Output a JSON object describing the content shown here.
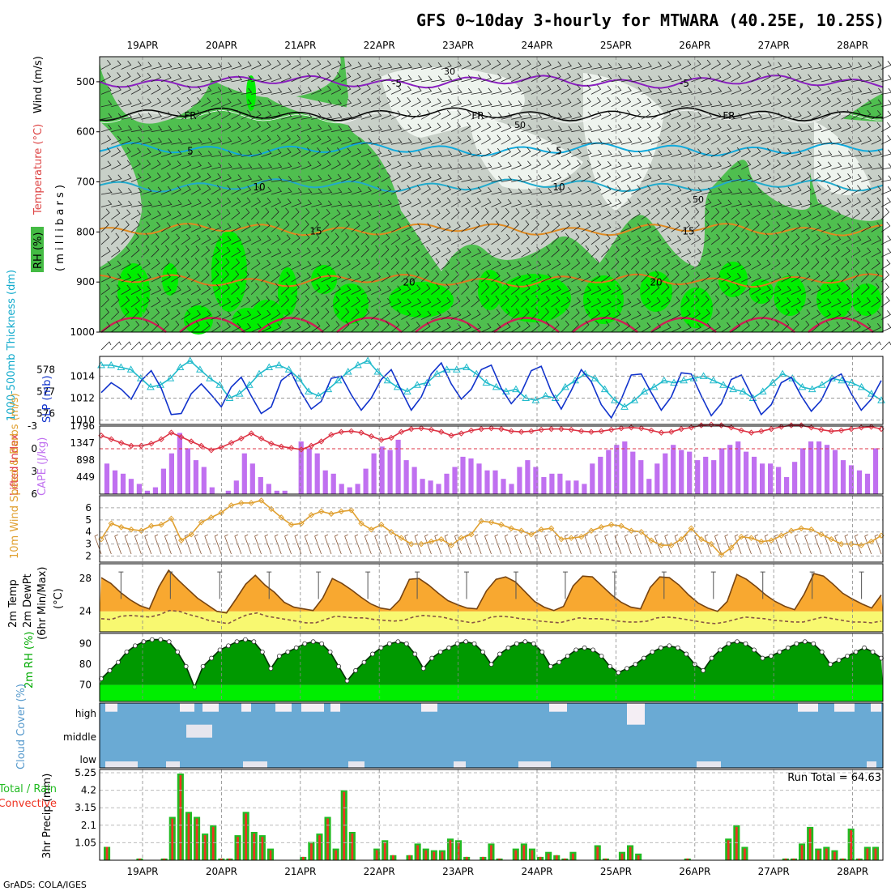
{
  "title": "GFS 0~10day 3-hourly for MTWARA (40.25E, 10.25S)",
  "footer": "GrADS: COLA/IGES",
  "colors": {
    "rh_green": "#4fbf4f",
    "rh_bright": "#00ee00",
    "rh_gray": "#c8d0c8",
    "rh_white": "#eef4ee",
    "purple": "#8a1fc0",
    "cyan": "#11aadd",
    "orange": "#e08a20",
    "slp_blue": "#1133cc",
    "thick_cyan": "#22bbcc",
    "li_red": "#dd3344",
    "cape_violet": "#c070f0",
    "wind_orange": "#e0a030",
    "temp_fill": "#f8a830",
    "dew_fill": "#f8f870",
    "rh2m_green": "#009900",
    "cloud_blue": "#6aaad4",
    "rain_green": "#22bb22",
    "conv_red": "#ee3322"
  },
  "chart_data": [
    {
      "type": "heatmap",
      "name": "upper-air",
      "ylabel_parts": [
        "RH (%)",
        "Temperature (°C)",
        "Wind (m/s)",
        "( m i l l i b a r s )"
      ],
      "x": [
        "19APR",
        "20APR",
        "21APR",
        "22APR",
        "23APR",
        "24APR",
        "25APR",
        "26APR",
        "27APR",
        "28APR"
      ],
      "yticks": [
        500,
        600,
        700,
        800,
        900,
        1000
      ],
      "ylim": [
        1000,
        450
      ],
      "isotherms": [
        {
          "label": "-5",
          "pressure": 500
        },
        {
          "label": "FR",
          "pressure": 565
        },
        {
          "label": "5",
          "pressure": 635
        },
        {
          "label": "10",
          "pressure": 707
        },
        {
          "label": "15",
          "pressure": 795
        },
        {
          "label": "20",
          "pressure": 897
        }
      ],
      "rh_labels": [
        "30",
        "50",
        "50"
      ]
    },
    {
      "type": "line",
      "name": "thickness-slp",
      "ylabel_left": "1000-500mb Thickness (dm)",
      "ylabel_right": "SLP (mb)",
      "yticks_left": [
        576,
        577,
        578
      ],
      "yticks_right": [
        1010,
        1012,
        1014
      ],
      "series": [
        {
          "name": "SLP (mb)",
          "values": [
            1012.5,
            1013.4,
            1012.8,
            1011.9,
            1013.6,
            1014.5,
            1012.9,
            1010.5,
            1010.6,
            1012.4,
            1013.3,
            1012.3,
            1011.2,
            1013.0,
            1013.9,
            1012.2,
            1010.6,
            1011.2,
            1013.6,
            1014.3,
            1012.5,
            1011.0,
            1011.7,
            1013.8,
            1014.0,
            1012.3,
            1010.9,
            1012.0,
            1013.7,
            1014.6,
            1012.7,
            1010.9,
            1012.1,
            1014.2,
            1015.2,
            1013.3,
            1011.9,
            1012.8,
            1014.6,
            1015.0,
            1012.9,
            1011.5,
            1012.5,
            1014.5,
            1014.9,
            1012.6,
            1011.0,
            1012.7,
            1014.6,
            1013.5,
            1011.4,
            1010.2,
            1011.9,
            1014.1,
            1014.2,
            1012.5,
            1010.9,
            1012.1,
            1014.3,
            1014.2,
            1012.2,
            1010.4,
            1011.5,
            1013.7,
            1014.1,
            1012.3,
            1010.5,
            1011.4,
            1013.4,
            1013.9,
            1012.2,
            1010.8,
            1011.8,
            1013.7,
            1014.2,
            1012.4,
            1010.9,
            1011.9,
            1013.6
          ]
        },
        {
          "name": "1000-500mb Thickness (dm)",
          "values": [
            578.2,
            578.2,
            578.1,
            578.0,
            577.6,
            577.2,
            577.3,
            577.6,
            578.1,
            578.4,
            578.0,
            577.6,
            577.3,
            576.7,
            576.9,
            577.3,
            577.8,
            578.1,
            578.2,
            578.0,
            577.6,
            577.0,
            576.8,
            577.1,
            577.5,
            577.9,
            578.2,
            578.4,
            577.9,
            577.5,
            577.2,
            577.0,
            577.3,
            577.4,
            577.8,
            578.0,
            578.0,
            578.1,
            577.8,
            577.4,
            577.2,
            577.0,
            577.1,
            576.7,
            576.6,
            576.8,
            576.7,
            577.2,
            577.5,
            577.8,
            577.6,
            577.1,
            576.6,
            576.3,
            576.6,
            577.0,
            577.2,
            577.5,
            577.4,
            577.5,
            577.6,
            577.7,
            577.5,
            577.3,
            577.1,
            577.0,
            576.7,
            577.0,
            577.4,
            577.8,
            577.6,
            577.2,
            577.1,
            577.3,
            577.6,
            577.5,
            577.4,
            577.2,
            576.9,
            576.6
          ]
        }
      ]
    },
    {
      "type": "bar",
      "name": "lifted-index-cape",
      "ylabel_left": "Lifted Index",
      "ylabel_right": "CAPE (J/kg)",
      "yticks_left": [
        -3,
        0,
        3,
        6
      ],
      "yticks_right": [
        449,
        898,
        1347,
        1796
      ],
      "series": [
        {
          "name": "Lifted Index",
          "values": [
            -2.0,
            -1.5,
            -1.0,
            -0.6,
            -0.6,
            -0.9,
            -1.5,
            -2.4,
            -1.8,
            -1.2,
            -0.6,
            0.0,
            -0.4,
            -1.0,
            -1.6,
            -2.3,
            -1.6,
            -0.9,
            -0.5,
            -0.3,
            -0.1,
            -0.6,
            -1.2,
            -2.1,
            -2.5,
            -2.6,
            -2.4,
            -1.9,
            -1.4,
            -1.7,
            -2.5,
            -2.9,
            -3.0,
            -2.8,
            -2.5,
            -2.0,
            -2.3,
            -2.7,
            -2.9,
            -3.0,
            -2.9,
            -2.6,
            -2.5,
            -2.6,
            -2.8,
            -2.9,
            -2.9,
            -2.8,
            -2.6,
            -2.5,
            -2.6,
            -2.8,
            -3.0,
            -3.1,
            -3.0,
            -2.7,
            -2.4,
            -2.5,
            -2.9,
            -3.1,
            -3.4,
            -3.5,
            -3.4,
            -3.1,
            -2.7,
            -2.4,
            -2.6,
            -2.9,
            -3.2,
            -3.4,
            -3.4,
            -3.1,
            -2.8,
            -2.6,
            -2.7,
            -2.9,
            -3.1,
            -3.2,
            -2.9
          ]
        },
        {
          "name": "CAPE (J/kg)",
          "values": [
            806,
            627,
            538,
            403,
            269,
            90,
            179,
            672,
            1075,
            1614,
            1210,
            896,
            717,
            179,
            0,
            90,
            358,
            1075,
            806,
            448,
            269,
            90,
            90,
            0,
            1389,
            1210,
            1075,
            627,
            538,
            269,
            179,
            269,
            672,
            1075,
            1254,
            1165,
            1434,
            896,
            717,
            403,
            358,
            269,
            538,
            717,
            985,
            940,
            806,
            627,
            627,
            403,
            269,
            717,
            896,
            717,
            448,
            538,
            538,
            358,
            358,
            269,
            806,
            985,
            1165,
            1300,
            1389,
            1120,
            896,
            403,
            806,
            1075,
            1300,
            1165,
            1120,
            896,
            986,
            896,
            1210,
            1300,
            1389,
            1120,
            985,
            806,
            806,
            717,
            448,
            851,
            1210,
            1389,
            1389,
            1300,
            1165,
            896,
            762,
            627,
            538,
            1210
          ]
        }
      ]
    },
    {
      "type": "line",
      "name": "10m-wind",
      "ylabel": "10m Wind Speed & Barbs (m/s)",
      "yticks": [
        2,
        3,
        4,
        5,
        6
      ],
      "series": [
        {
          "name": "10m Wind Speed",
          "values": [
            3.4,
            4.7,
            4.4,
            4.2,
            4.1,
            4.5,
            4.6,
            5.1,
            3.3,
            3.8,
            4.8,
            5.2,
            5.6,
            6.2,
            6.4,
            6.4,
            6.6,
            5.9,
            5.2,
            4.6,
            4.7,
            5.4,
            5.7,
            5.5,
            5.7,
            5.8,
            4.7,
            4.2,
            4.6,
            4.0,
            3.5,
            3.0,
            3.0,
            3.2,
            3.4,
            2.9,
            3.5,
            3.8,
            4.9,
            4.8,
            4.6,
            4.3,
            4.1,
            3.8,
            4.2,
            4.3,
            3.4,
            3.5,
            3.6,
            4.1,
            4.4,
            4.6,
            4.5,
            4.1,
            4.0,
            3.3,
            2.9,
            2.9,
            3.4,
            4.3,
            3.4,
            3.0,
            2.1,
            2.7,
            3.6,
            3.5,
            3.2,
            3.3,
            3.7,
            4.1,
            4.3,
            4.2,
            3.8,
            3.4,
            3.0,
            3.0,
            2.9,
            3.2,
            3.7
          ]
        }
      ]
    },
    {
      "type": "area",
      "name": "2m-temp-dewpoint",
      "ylabel_parts": [
        "2m Temp",
        "2m DewPt",
        "(6hr Min/Max)",
        "(°C)"
      ],
      "yticks": [
        24,
        28
      ],
      "series": [
        {
          "name": "2m Temp",
          "values": [
            28.1,
            27.4,
            26.3,
            25.4,
            24.7,
            24.3,
            27.0,
            29.0,
            27.8,
            26.7,
            25.6,
            24.8,
            24.0,
            23.8,
            25.5,
            27.3,
            28.4,
            27.2,
            26.3,
            25.1,
            24.5,
            24.3,
            24.1,
            25.6,
            28.0,
            27.4,
            26.6,
            25.7,
            24.9,
            24.4,
            24.2,
            25.4,
            27.9,
            28.0,
            27.2,
            26.2,
            25.3,
            24.8,
            24.4,
            24.3,
            26.5,
            27.9,
            28.2,
            27.6,
            26.4,
            25.2,
            24.5,
            24.1,
            24.6,
            27.1,
            28.3,
            28.2,
            27.1,
            26.0,
            25.1,
            24.5,
            24.3,
            26.9,
            28.2,
            28.1,
            27.2,
            26.0,
            25.0,
            24.4,
            24.0,
            25.2,
            28.5,
            27.9,
            27.0,
            26.0,
            25.2,
            24.6,
            24.2,
            26.1,
            28.6,
            28.3,
            27.3,
            26.2,
            25.5,
            24.9,
            24.4,
            26.0
          ]
        },
        {
          "name": "2m DewPt",
          "values": [
            23.1,
            23.0,
            23.4,
            23.5,
            23.4,
            23.3,
            23.6,
            24.1,
            24.0,
            23.6,
            23.3,
            22.9,
            22.7,
            22.5,
            23.1,
            23.6,
            23.8,
            23.4,
            23.2,
            23.0,
            22.8,
            22.6,
            22.6,
            23.0,
            23.4,
            23.3,
            23.2,
            23.2,
            23.0,
            22.9,
            22.8,
            22.9,
            23.3,
            23.5,
            23.4,
            23.3,
            23.0,
            22.8,
            22.6,
            22.8,
            23.3,
            23.4,
            23.3,
            23.1,
            23.0,
            22.8,
            22.7,
            22.6,
            22.9,
            23.2,
            23.1,
            23.1,
            23.0,
            22.8,
            22.7,
            22.7,
            22.8,
            23.2,
            23.3,
            23.2,
            23.0,
            22.8,
            22.6,
            22.5,
            22.7,
            23.0,
            23.3,
            23.2,
            23.1,
            22.9,
            22.8,
            22.7,
            22.7,
            23.0,
            23.3,
            23.1,
            22.9,
            22.7,
            22.7,
            22.6,
            22.8
          ]
        }
      ]
    },
    {
      "type": "area",
      "name": "2m-rh",
      "ylabel": "2m RH (%)",
      "yticks": [
        70,
        80,
        90
      ],
      "series": [
        {
          "name": "2m RH",
          "values": [
            73,
            77,
            81,
            86,
            89,
            91,
            92,
            92,
            91,
            86,
            79,
            69,
            79,
            83,
            87,
            89,
            91,
            92,
            91,
            86,
            78,
            84,
            86,
            88,
            90,
            91,
            90,
            86,
            79,
            72,
            77,
            81,
            85,
            88,
            90,
            91,
            90,
            85,
            78,
            83,
            86,
            88,
            90,
            91,
            90,
            86,
            80,
            85,
            88,
            90,
            91,
            90,
            86,
            79,
            81,
            84,
            87,
            88,
            87,
            84,
            79,
            76,
            78,
            80,
            83,
            86,
            88,
            89,
            88,
            85,
            80,
            77,
            83,
            87,
            90,
            91,
            90,
            87,
            83,
            84,
            86,
            88,
            90,
            91,
            90,
            86,
            80,
            82,
            84,
            86,
            88,
            86,
            83
          ]
        }
      ]
    },
    {
      "type": "heatmap",
      "name": "cloud-cover",
      "ylabel": "Cloud Cover (%)",
      "rows": [
        "high",
        "middle",
        "low"
      ]
    },
    {
      "type": "bar",
      "name": "precip",
      "ylabel": "3hr Precip (mm)",
      "legend": [
        "Total / Rain",
        "Convective"
      ],
      "run_total": "Run Total = 64.63",
      "yticks": [
        1.05,
        2.1,
        3.15,
        4.2,
        5.25
      ],
      "ylim": [
        0,
        5.25
      ],
      "series": [
        {
          "name": "Total",
          "values": [
            0.8,
            0,
            0,
            0,
            0.1,
            0,
            0,
            0.1,
            2.6,
            5.2,
            2.9,
            2.6,
            1.6,
            2.1,
            0.1,
            0.1,
            1.5,
            2.9,
            1.7,
            1.5,
            0.7,
            0,
            0,
            0,
            0.2,
            1.1,
            1.6,
            2.6,
            0.7,
            4.2,
            1.7,
            0,
            0,
            0.7,
            1.2,
            0.3,
            0,
            0.3,
            1.0,
            0.7,
            0.6,
            0.6,
            1.3,
            1.2,
            0.2,
            0,
            0.2,
            1.0,
            0.1,
            0,
            0.7,
            1.0,
            0.7,
            0.2,
            0.5,
            0.3,
            0.1,
            0.5,
            0,
            0,
            0.9,
            0.1,
            0,
            0.5,
            0.9,
            0.4,
            0,
            0,
            0,
            0,
            0,
            0.1,
            0,
            0,
            0,
            0,
            1.3,
            2.1,
            0.8,
            0,
            0,
            0,
            0,
            0.1,
            0.1,
            1.0,
            2.0,
            0.7,
            0.8,
            0.6,
            0.1,
            1.9,
            0.1,
            0.8,
            0.8
          ]
        },
        {
          "name": "Convective",
          "values": [
            0.8,
            0,
            0,
            0,
            0.1,
            0,
            0,
            0.1,
            2.5,
            5.1,
            2.8,
            2.5,
            1.5,
            2.0,
            0.1,
            0.1,
            1.4,
            2.8,
            1.6,
            1.4,
            0.6,
            0,
            0,
            0,
            0.2,
            1.0,
            1.5,
            2.5,
            0.6,
            4.1,
            1.6,
            0,
            0,
            0.6,
            1.1,
            0.3,
            0,
            0.3,
            0.9,
            0.6,
            0.5,
            0.5,
            1.2,
            1.1,
            0.2,
            0,
            0.2,
            0.9,
            0.1,
            0,
            0.6,
            0.9,
            0.6,
            0.2,
            0.4,
            0.3,
            0.1,
            0.4,
            0,
            0,
            0.8,
            0.1,
            0,
            0.4,
            0.8,
            0.3,
            0,
            0,
            0,
            0,
            0,
            0.1,
            0,
            0,
            0,
            0,
            1.2,
            2.0,
            0.7,
            0,
            0,
            0,
            0,
            0.1,
            0.1,
            0.9,
            1.9,
            0.6,
            0.7,
            0.5,
            0.1,
            1.8,
            0.1,
            0.7,
            0.7
          ]
        }
      ]
    }
  ]
}
